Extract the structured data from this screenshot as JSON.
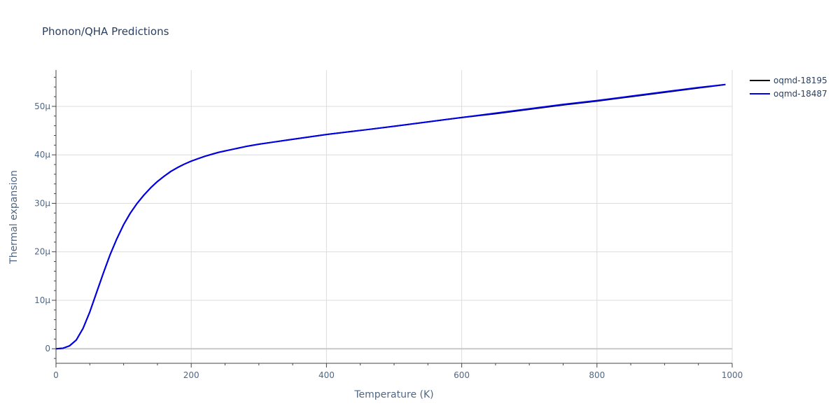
{
  "chart_data": {
    "type": "line",
    "title": "Phonon/QHA Predictions",
    "xlabel": "Temperature (K)",
    "ylabel": "Thermal expansion",
    "xlim": [
      0,
      1000
    ],
    "ylim": [
      -3,
      57.5
    ],
    "x_ticks": [
      0,
      200,
      400,
      600,
      800,
      1000
    ],
    "x_tick_labels": [
      "0",
      "200",
      "400",
      "600",
      "800",
      "1000"
    ],
    "y_ticks": [
      0,
      10,
      20,
      30,
      40,
      50
    ],
    "y_tick_labels": [
      "0",
      "10μ",
      "20μ",
      "30μ",
      "40μ",
      "50μ"
    ],
    "grid": true,
    "legend_position": "top-right",
    "x": [
      0,
      10,
      20,
      30,
      40,
      50,
      60,
      70,
      80,
      90,
      100,
      110,
      120,
      130,
      140,
      150,
      160,
      170,
      180,
      190,
      200,
      210,
      220,
      230,
      240,
      250,
      260,
      270,
      280,
      300,
      320,
      340,
      360,
      380,
      400,
      430,
      460,
      500,
      550,
      600,
      650,
      700,
      750,
      800,
      850,
      900,
      950,
      990
    ],
    "series": [
      {
        "name": "oqmd-18195",
        "color": "#000000",
        "values": [
          0,
          0.1,
          0.6,
          1.8,
          4.2,
          7.6,
          11.6,
          15.6,
          19.4,
          22.7,
          25.6,
          28.0,
          30.0,
          31.7,
          33.2,
          34.5,
          35.6,
          36.6,
          37.4,
          38.1,
          38.7,
          39.2,
          39.7,
          40.1,
          40.5,
          40.8,
          41.1,
          41.4,
          41.7,
          42.2,
          42.6,
          43.0,
          43.4,
          43.8,
          44.2,
          44.7,
          45.2,
          45.9,
          46.8,
          47.7,
          48.5,
          49.4,
          50.3,
          51.1,
          52.0,
          52.9,
          53.8,
          54.5
        ]
      },
      {
        "name": "oqmd-18487",
        "color": "#0000ee",
        "values": [
          0,
          0.1,
          0.6,
          1.8,
          4.2,
          7.6,
          11.6,
          15.6,
          19.4,
          22.7,
          25.6,
          28.0,
          30.0,
          31.7,
          33.2,
          34.5,
          35.6,
          36.6,
          37.4,
          38.1,
          38.7,
          39.2,
          39.7,
          40.1,
          40.5,
          40.8,
          41.1,
          41.4,
          41.7,
          42.2,
          42.6,
          43.0,
          43.4,
          43.8,
          44.2,
          44.7,
          45.2,
          45.9,
          46.8,
          47.7,
          48.6,
          49.5,
          50.4,
          51.2,
          52.1,
          53.0,
          53.9,
          54.5
        ]
      }
    ]
  }
}
